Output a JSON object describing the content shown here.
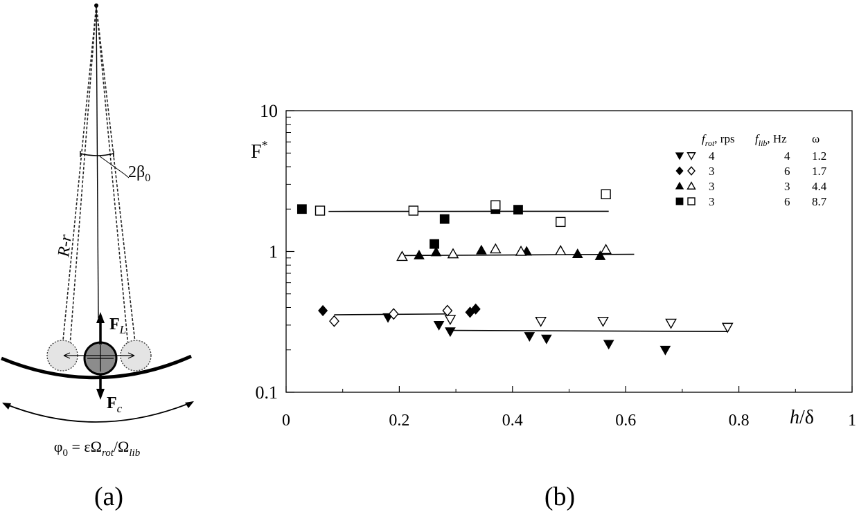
{
  "panel_a": {
    "caption": "(a)",
    "angle_label": "2β",
    "angle_sub": "0",
    "arm_label": "R-r",
    "lift_force": "F",
    "lift_sub": "L",
    "centrifugal_force": "F",
    "centrifugal_sub": "c",
    "phi_sym": "φ",
    "phi_sub": "0",
    "eq_eps": " = εΩ",
    "eq_rot": "rot",
    "eq_slash": "/Ω",
    "eq_lib": "lib"
  },
  "panel_b": {
    "caption": "(b)",
    "xlabel_h": "h",
    "xlabel_rest": "/δ",
    "ylabel": "F",
    "ylabel_sup": "*"
  },
  "chart_data": {
    "type": "scatter",
    "xscale": "linear",
    "yscale": "log",
    "xlim": [
      0,
      1
    ],
    "ylim": [
      0.1,
      10
    ],
    "xticks": [
      "0",
      "0.2",
      "0.4",
      "0.6",
      "0.8",
      "1"
    ],
    "xtick_values": [
      0,
      0.2,
      0.4,
      0.6,
      0.8,
      1
    ],
    "yticks": [
      "0.1",
      "1",
      "10"
    ],
    "ytick_values": [
      0.1,
      1,
      10
    ],
    "legend": {
      "header_frot": "f",
      "header_frot_sub": "rot",
      "header_frot_unit": ", rps",
      "header_flib": "f",
      "header_flib_sub": "lib",
      "header_flib_unit": ", Hz",
      "header_omega": "ω",
      "rows": [
        {
          "marker": "triangle-down",
          "frot": "4",
          "flib": "4",
          "omega": "1.2"
        },
        {
          "marker": "diamond",
          "frot": "3",
          "flib": "6",
          "omega": "1.7"
        },
        {
          "marker": "triangle-up",
          "frot": "3",
          "flib": "3",
          "omega": "4.4"
        },
        {
          "marker": "square",
          "frot": "3",
          "flib": "6",
          "omega": "8.7"
        }
      ]
    },
    "series": [
      {
        "name": "ω=1.2",
        "marker": "triangle-down",
        "filled": [
          [
            0.18,
            0.34
          ],
          [
            0.27,
            0.3
          ],
          [
            0.29,
            0.27
          ],
          [
            0.43,
            0.25
          ],
          [
            0.46,
            0.24
          ],
          [
            0.57,
            0.22
          ],
          [
            0.67,
            0.2
          ]
        ],
        "open": [
          [
            0.29,
            0.33
          ],
          [
            0.45,
            0.32
          ],
          [
            0.56,
            0.32
          ],
          [
            0.68,
            0.31
          ],
          [
            0.78,
            0.29
          ]
        ],
        "fit": [
          [
            0.29,
            0.275
          ],
          [
            0.78,
            0.27
          ]
        ]
      },
      {
        "name": "ω=1.7",
        "marker": "diamond",
        "filled": [
          [
            0.065,
            0.38
          ],
          [
            0.325,
            0.37
          ],
          [
            0.335,
            0.39
          ]
        ],
        "open": [
          [
            0.085,
            0.32
          ],
          [
            0.19,
            0.36
          ],
          [
            0.285,
            0.38
          ]
        ],
        "fit": [
          [
            0.085,
            0.355
          ],
          [
            0.285,
            0.36
          ]
        ]
      },
      {
        "name": "ω=4.4",
        "marker": "triangle-up",
        "filled": [
          [
            0.235,
            0.94
          ],
          [
            0.265,
            0.99
          ],
          [
            0.345,
            1.02
          ],
          [
            0.425,
            1.0
          ],
          [
            0.515,
            0.96
          ],
          [
            0.555,
            0.93
          ]
        ],
        "open": [
          [
            0.205,
            0.92
          ],
          [
            0.295,
            0.96
          ],
          [
            0.37,
            1.04
          ],
          [
            0.415,
            1.0
          ],
          [
            0.485,
            1.01
          ],
          [
            0.565,
            1.03
          ]
        ],
        "fit": [
          [
            0.2,
            0.935
          ],
          [
            0.615,
            0.955
          ]
        ]
      },
      {
        "name": "ω=8.7",
        "marker": "square",
        "filled": [
          [
            0.028,
            2.0
          ],
          [
            0.28,
            1.7
          ],
          [
            0.262,
            1.13
          ],
          [
            0.37,
            2.0
          ],
          [
            0.41,
            1.98
          ]
        ],
        "open": [
          [
            0.06,
            1.95
          ],
          [
            0.225,
            1.95
          ],
          [
            0.37,
            2.13
          ],
          [
            0.485,
            1.62
          ],
          [
            0.565,
            2.55
          ]
        ],
        "fit": [
          [
            0.075,
            1.925
          ],
          [
            0.57,
            1.93
          ]
        ]
      }
    ]
  }
}
